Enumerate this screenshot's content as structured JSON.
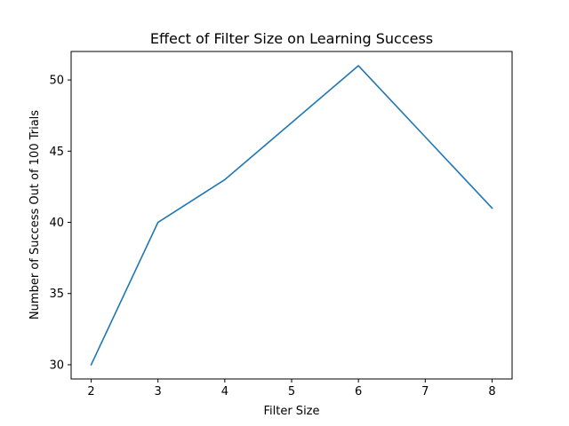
{
  "chart_data": {
    "type": "line",
    "title": "Effect of Filter Size on Learning Success",
    "xlabel": "Filter Size",
    "ylabel": "Number of Success Out of 100 Trials",
    "x": [
      2,
      3,
      4,
      5,
      6,
      7,
      8
    ],
    "series": [
      {
        "values": [
          30,
          40,
          43,
          47,
          51,
          46,
          41
        ],
        "color": "#1f77b4"
      }
    ],
    "xlim": [
      1.7,
      8.3
    ],
    "ylim": [
      29.0,
      52.0
    ],
    "xticks": [
      2,
      3,
      4,
      5,
      6,
      7,
      8
    ],
    "yticks": [
      30,
      35,
      40,
      45,
      50
    ],
    "grid": false,
    "legend": "none"
  }
}
